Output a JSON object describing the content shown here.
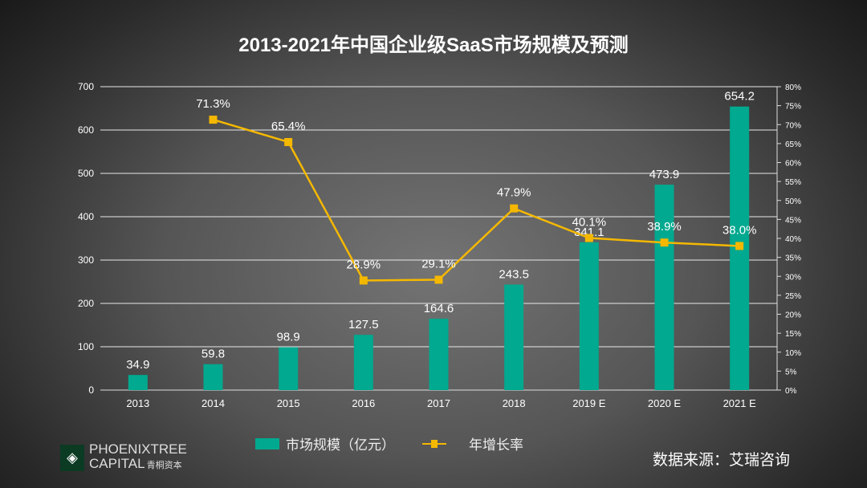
{
  "chart_data": {
    "type": "bar+line",
    "title": "2013-2021年中国企业级SaaS市场规模及预测",
    "categories": [
      "2013",
      "2014",
      "2015",
      "2016",
      "2017",
      "2018",
      "2019 E",
      "2020 E",
      "2021 E"
    ],
    "series": [
      {
        "name": "市场规模（亿元）",
        "type": "bar",
        "axis": "left",
        "values": [
          34.9,
          59.8,
          98.9,
          127.5,
          164.6,
          243.5,
          341.1,
          473.9,
          654.2
        ],
        "labels": [
          "34.9",
          "59.8",
          "98.9",
          "127.5",
          "164.6",
          "243.5",
          "341.1",
          "473.9",
          "654.2"
        ],
        "color": "#00a98f"
      },
      {
        "name": "年增长率",
        "type": "line",
        "axis": "right",
        "values": [
          null,
          71.3,
          65.4,
          28.9,
          29.1,
          47.9,
          40.1,
          38.9,
          38.0
        ],
        "labels": [
          "",
          "71.3%",
          "65.4%",
          "28.9%",
          "29.1%",
          "47.9%",
          "40.1%",
          "38.9%",
          "38.0%"
        ],
        "color": "#f5b800"
      }
    ],
    "left_axis": {
      "ylim": [
        0,
        700
      ],
      "ticks": [
        "0",
        "100",
        "200",
        "300",
        "400",
        "500",
        "600",
        "700"
      ]
    },
    "right_axis": {
      "ylim": [
        0,
        80
      ],
      "ticks": [
        "0%",
        "5%",
        "10%",
        "15%",
        "20%",
        "25%",
        "30%",
        "35%",
        "40%",
        "45%",
        "50%",
        "55%",
        "60%",
        "65%",
        "70%",
        "75%",
        "80%"
      ]
    },
    "grid": true,
    "legend": "bottom"
  },
  "logo": {
    "line1": "PHOENIXTREE",
    "line2": "CAPITAL",
    "cn": "青桐资本"
  },
  "source": "数据来源：艾瑞咨询"
}
